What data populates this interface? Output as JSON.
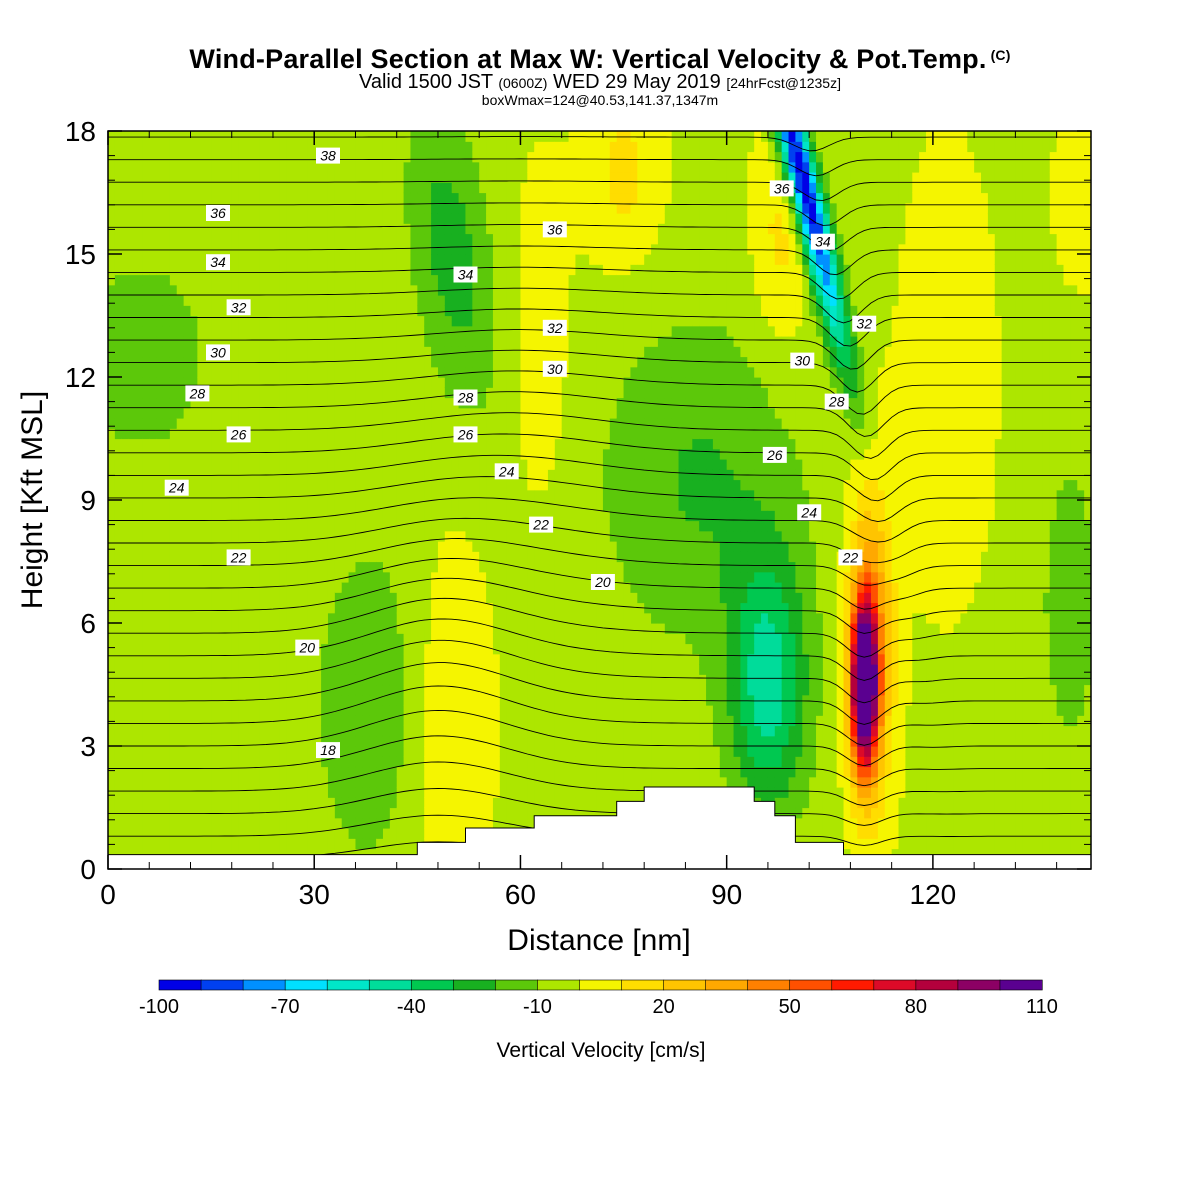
{
  "header": {
    "title": "Wind-Parallel Section at Max W: Vertical Velocity & Pot.Temp.",
    "title_mark": "(C)",
    "valid_prefix": "Valid 1500 JST",
    "valid_zulu": "(0600Z)",
    "valid_date": "WED 29 May 2019",
    "forecast": "[24hrFcst@1235z]",
    "boxmax": "boxWmax=124@40.53,141.37,1347m"
  },
  "chart_data": {
    "type": "heatmap",
    "title": "Wind-Parallel Section at Max W: Vertical Velocity & Pot.Temp.",
    "xlabel": "Distance [nm]",
    "ylabel": "Height [Kft MSL]",
    "xlim": [
      0,
      143
    ],
    "ylim": [
      0,
      18
    ],
    "x_ticks": [
      "0",
      "30",
      "60",
      "90",
      "120"
    ],
    "y_ticks": [
      "0",
      "3",
      "6",
      "9",
      "12",
      "15",
      "18"
    ],
    "colorbar": {
      "label": "Vertical Velocity [cm/s]",
      "tick_labels": [
        "-100",
        "-70",
        "-40",
        "-10",
        "20",
        "50",
        "80",
        "110"
      ],
      "bins": [
        {
          "lo": -100,
          "color": "#0000e6"
        },
        {
          "lo": -90,
          "color": "#0040f0"
        },
        {
          "lo": -80,
          "color": "#0090ff"
        },
        {
          "lo": -70,
          "color": "#00e0ff"
        },
        {
          "lo": -60,
          "color": "#00e6c8"
        },
        {
          "lo": -50,
          "color": "#00dc9a"
        },
        {
          "lo": -40,
          "color": "#00c850"
        },
        {
          "lo": -30,
          "color": "#18b020"
        },
        {
          "lo": -20,
          "color": "#5cc80a"
        },
        {
          "lo": -10,
          "color": "#ade600"
        },
        {
          "lo": 0,
          "color": "#f5f500"
        },
        {
          "lo": 10,
          "color": "#ffdd00"
        },
        {
          "lo": 20,
          "color": "#ffc400"
        },
        {
          "lo": 30,
          "color": "#ffa800"
        },
        {
          "lo": 40,
          "color": "#ff8000"
        },
        {
          "lo": 50,
          "color": "#ff5000"
        },
        {
          "lo": 60,
          "color": "#ff1a00"
        },
        {
          "lo": 70,
          "color": "#dc0a28"
        },
        {
          "lo": 80,
          "color": "#b4003c"
        },
        {
          "lo": 90,
          "color": "#8c0064"
        },
        {
          "lo": 100,
          "color": "#5a0090"
        }
      ]
    },
    "contour_labels": [
      {
        "text": "38",
        "x": 32,
        "y": 17.4
      },
      {
        "text": "36",
        "x": 16,
        "y": 16.0
      },
      {
        "text": "36",
        "x": 65,
        "y": 15.6
      },
      {
        "text": "36",
        "x": 98,
        "y": 16.6
      },
      {
        "text": "34",
        "x": 16,
        "y": 14.8
      },
      {
        "text": "34",
        "x": 52,
        "y": 14.5
      },
      {
        "text": "34",
        "x": 104,
        "y": 15.3
      },
      {
        "text": "32",
        "x": 19,
        "y": 13.7
      },
      {
        "text": "32",
        "x": 65,
        "y": 13.2
      },
      {
        "text": "32",
        "x": 110,
        "y": 13.3
      },
      {
        "text": "30",
        "x": 16,
        "y": 12.6
      },
      {
        "text": "30",
        "x": 65,
        "y": 12.2
      },
      {
        "text": "30",
        "x": 101,
        "y": 12.4
      },
      {
        "text": "28",
        "x": 13,
        "y": 11.6
      },
      {
        "text": "28",
        "x": 52,
        "y": 11.5
      },
      {
        "text": "28",
        "x": 106,
        "y": 11.4
      },
      {
        "text": "26",
        "x": 19,
        "y": 10.6
      },
      {
        "text": "26",
        "x": 52,
        "y": 10.6
      },
      {
        "text": "26",
        "x": 97,
        "y": 10.1
      },
      {
        "text": "24",
        "x": 10,
        "y": 9.3
      },
      {
        "text": "24",
        "x": 58,
        "y": 9.7
      },
      {
        "text": "24",
        "x": 102,
        "y": 8.7
      },
      {
        "text": "22",
        "x": 19,
        "y": 7.6
      },
      {
        "text": "22",
        "x": 63,
        "y": 8.4
      },
      {
        "text": "22",
        "x": 108,
        "y": 7.6
      },
      {
        "text": "20",
        "x": 29,
        "y": 5.4
      },
      {
        "text": "20",
        "x": 72,
        "y": 7.0
      },
      {
        "text": "18",
        "x": 32,
        "y": 2.9
      }
    ],
    "terrain": [
      [
        0,
        0.35
      ],
      [
        45,
        0.35
      ],
      [
        45,
        0.65
      ],
      [
        52,
        0.65
      ],
      [
        52,
        1.0
      ],
      [
        62,
        1.0
      ],
      [
        62,
        1.3
      ],
      [
        74,
        1.3
      ],
      [
        74,
        1.65
      ],
      [
        78,
        1.65
      ],
      [
        78,
        2.0
      ],
      [
        94,
        2.0
      ],
      [
        94,
        1.65
      ],
      [
        97,
        1.65
      ],
      [
        97,
        1.3
      ],
      [
        100,
        1.3
      ],
      [
        100,
        0.65
      ],
      [
        107,
        0.65
      ],
      [
        107,
        0.35
      ],
      [
        143,
        0.35
      ]
    ],
    "max_w": 124
  }
}
